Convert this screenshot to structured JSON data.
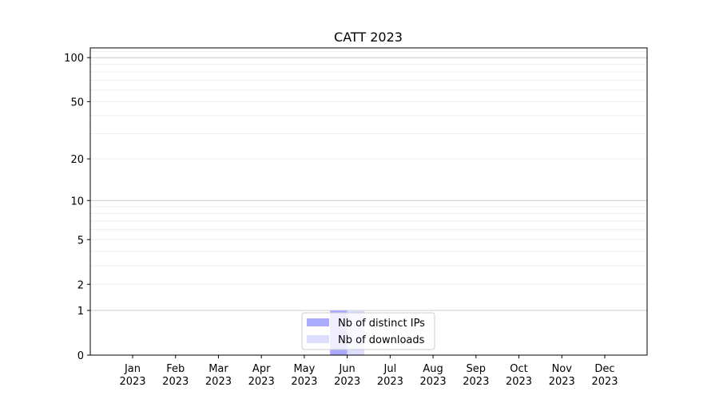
{
  "chart_data": {
    "type": "bar",
    "title": "CATT 2023",
    "xlabel": "",
    "ylabel": "",
    "yscale": "log(1+y)",
    "ylim": [
      0,
      116
    ],
    "yticks": [
      0,
      1,
      2,
      5,
      10,
      20,
      50,
      100
    ],
    "grid": true,
    "legend_placement": "lower-center",
    "categories": [
      "Jan\n2023",
      "Feb\n2023",
      "Mar\n2023",
      "Apr\n2023",
      "May\n2023",
      "Jun\n2023",
      "Jul\n2023",
      "Aug\n2023",
      "Sep\n2023",
      "Oct\n2023",
      "Nov\n2023",
      "Dec\n2023"
    ],
    "series": [
      {
        "name": "Nb of distinct IPs",
        "color": "#aaaaff",
        "values": [
          0,
          0,
          0,
          0,
          0,
          1,
          0,
          0,
          0,
          0,
          0,
          0
        ]
      },
      {
        "name": "Nb of downloads",
        "color": "#ddddff",
        "values": [
          0,
          0,
          0,
          0,
          0,
          1,
          0,
          0,
          0,
          0,
          0,
          0
        ]
      }
    ]
  }
}
